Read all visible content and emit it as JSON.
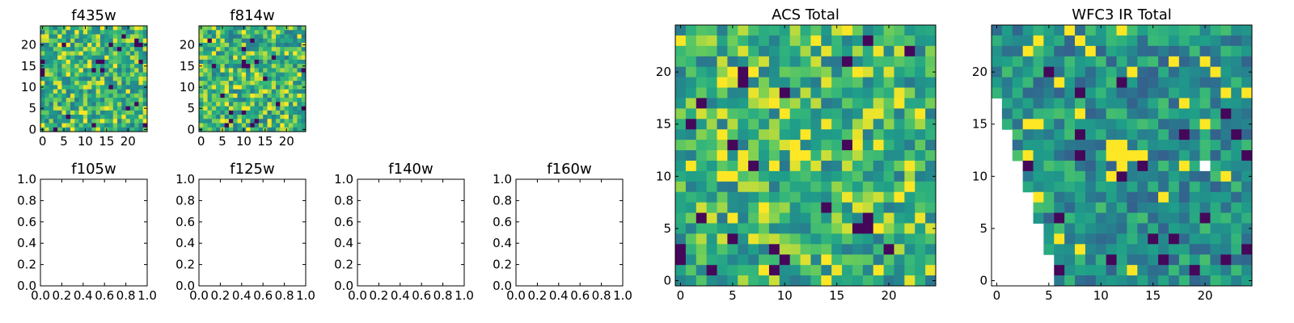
{
  "chart_data": [
    {
      "panel": "f435w",
      "type": "heatmap",
      "title": "f435w",
      "xlim": [
        -0.5,
        24.5
      ],
      "ylim": [
        -0.5,
        24.5
      ],
      "xticks": [
        0,
        5,
        10,
        15,
        20
      ],
      "yticks": [
        0,
        5,
        10,
        15,
        20
      ],
      "grid_size": [
        25,
        25
      ],
      "colormap": "viridis"
    },
    {
      "panel": "f814w",
      "type": "heatmap",
      "title": "f814w",
      "xlim": [
        -0.5,
        24.5
      ],
      "ylim": [
        -0.5,
        24.5
      ],
      "xticks": [
        0,
        5,
        10,
        15,
        20
      ],
      "yticks": [
        0,
        5,
        10,
        15,
        20
      ],
      "grid_size": [
        25,
        25
      ],
      "colormap": "viridis"
    },
    {
      "panel": "f105w",
      "type": "heatmap",
      "title": "f105w",
      "empty": true,
      "xlim": [
        0,
        1
      ],
      "ylim": [
        0,
        1
      ],
      "xticks": [
        "0.0",
        "0.2",
        "0.4",
        "0.6",
        "0.8",
        "1.0"
      ],
      "yticks": [
        "0.0",
        "0.2",
        "0.4",
        "0.6",
        "0.8",
        "1.0"
      ]
    },
    {
      "panel": "f125w",
      "type": "heatmap",
      "title": "f125w",
      "empty": true,
      "xlim": [
        0,
        1
      ],
      "ylim": [
        0,
        1
      ],
      "xticks": [
        "0.0",
        "0.2",
        "0.4",
        "0.6",
        "0.8",
        "1.0"
      ],
      "yticks": [
        "0.0",
        "0.2",
        "0.4",
        "0.6",
        "0.8",
        "1.0"
      ]
    },
    {
      "panel": "f140w",
      "type": "heatmap",
      "title": "f140w",
      "empty": true,
      "xlim": [
        0,
        1
      ],
      "ylim": [
        0,
        1
      ],
      "xticks": [
        "0.0",
        "0.2",
        "0.4",
        "0.6",
        "0.8",
        "1.0"
      ],
      "yticks": [
        "0.0",
        "0.2",
        "0.4",
        "0.6",
        "0.8",
        "1.0"
      ]
    },
    {
      "panel": "f160w",
      "type": "heatmap",
      "title": "f160w",
      "empty": true,
      "xlim": [
        0,
        1
      ],
      "ylim": [
        0,
        1
      ],
      "xticks": [
        "0.0",
        "0.2",
        "0.4",
        "0.6",
        "0.8",
        "1.0"
      ],
      "yticks": [
        "0.0",
        "0.2",
        "0.4",
        "0.6",
        "0.8",
        "1.0"
      ]
    },
    {
      "panel": "acs-total",
      "type": "heatmap",
      "title": "ACS Total",
      "xlim": [
        -0.5,
        24.5
      ],
      "ylim": [
        -0.5,
        24.5
      ],
      "xticks": [
        0,
        5,
        10,
        15,
        20
      ],
      "yticks": [
        0,
        5,
        10,
        15,
        20
      ],
      "grid_size": [
        25,
        25
      ],
      "colormap": "viridis"
    },
    {
      "panel": "wfc3-ir-total",
      "type": "heatmap",
      "title": "WFC3 IR Total",
      "xlim": [
        -0.5,
        24.5
      ],
      "ylim": [
        -0.5,
        24.5
      ],
      "xticks": [
        0,
        5,
        10,
        15,
        20
      ],
      "yticks": [
        0,
        5,
        10,
        15,
        20
      ],
      "grid_size": [
        25,
        25
      ],
      "colormap": "viridis",
      "masked_region": "lower-left triangular area blank (no data)"
    }
  ],
  "colors": {
    "viridis_dark": "#440154",
    "viridis_blue": "#31688e",
    "viridis_teal": "#21918c",
    "viridis_green": "#35b779",
    "viridis_lime": "#90d743",
    "viridis_yellow": "#fde725"
  }
}
